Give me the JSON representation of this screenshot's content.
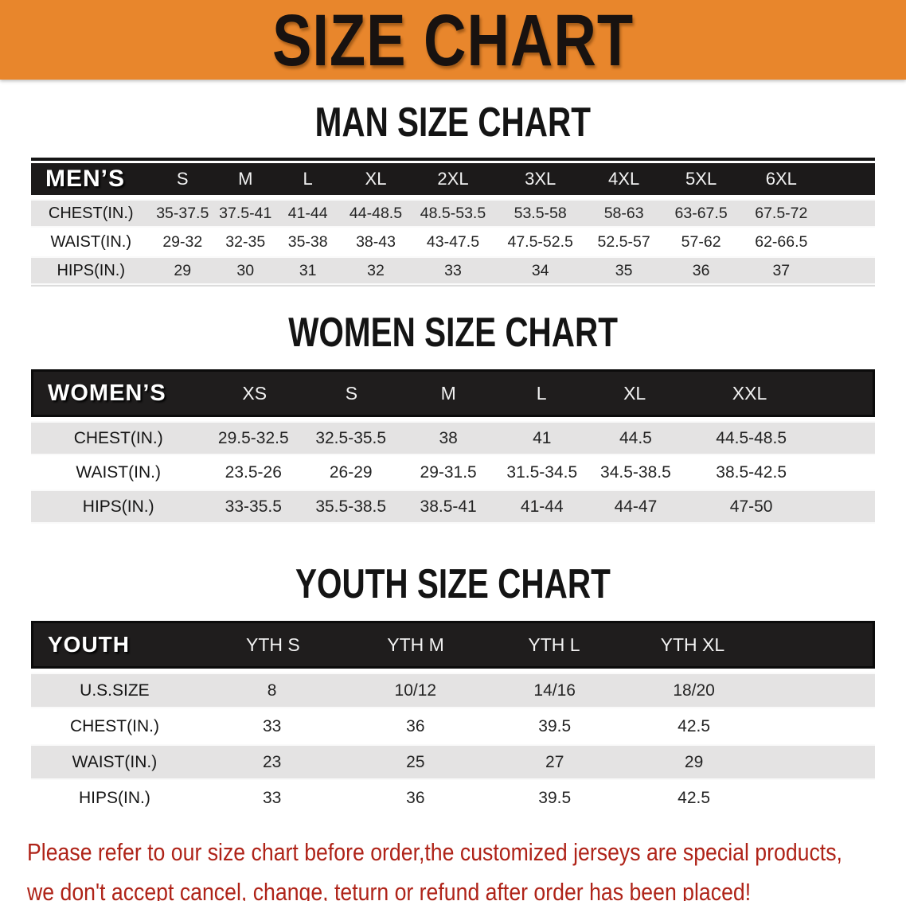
{
  "banner": {
    "title": "SIZE CHART",
    "bg_color": "#E8862C",
    "text_color": "#181210"
  },
  "colors": {
    "table_header_bg": "#1C1A1A",
    "shaded_row_bg": "#E4E3E3",
    "note_text": "#AF2318"
  },
  "sections": [
    {
      "heading": "MAN SIZE CHART",
      "table": {
        "label": "MEN’S",
        "columns": [
          "S",
          "M",
          "L",
          "XL",
          "2XL",
          "3XL",
          "4XL",
          "5XL",
          "6XL"
        ],
        "rows": [
          {
            "label": "CHEST(IN.)",
            "values": [
              "35-37.5",
              "37.5-41",
              "41-44",
              "44-48.5",
              "48.5-53.5",
              "53.5-58",
              "58-63",
              "63-67.5",
              "67.5-72"
            ]
          },
          {
            "label": "WAIST(IN.)",
            "values": [
              "29-32",
              "32-35",
              "35-38",
              "38-43",
              "43-47.5",
              "47.5-52.5",
              "52.5-57",
              "57-62",
              "62-66.5"
            ]
          },
          {
            "label": "HIPS(IN.)",
            "values": [
              "29",
              "30",
              "31",
              "32",
              "33",
              "34",
              "35",
              "36",
              "37"
            ]
          }
        ]
      }
    },
    {
      "heading": "WOMEN SIZE CHART",
      "table": {
        "label": "WOMEN’S",
        "columns": [
          "XS",
          "S",
          "M",
          "L",
          "XL",
          "XXL"
        ],
        "rows": [
          {
            "label": "CHEST(IN.)",
            "values": [
              "29.5-32.5",
              "32.5-35.5",
              "38",
              "41",
              "44.5",
              "44.5-48.5"
            ]
          },
          {
            "label": "WAIST(IN.)",
            "values": [
              "23.5-26",
              "26-29",
              "29-31.5",
              "31.5-34.5",
              "34.5-38.5",
              "38.5-42.5"
            ]
          },
          {
            "label": "HIPS(IN.)",
            "values": [
              "33-35.5",
              "35.5-38.5",
              "38.5-41",
              "41-44",
              "44-47",
              "47-50"
            ]
          }
        ]
      }
    },
    {
      "heading": "YOUTH SIZE CHART",
      "table": {
        "label": "YOUTH",
        "columns": [
          "YTH S",
          "YTH M",
          "YTH L",
          "YTH XL"
        ],
        "rows": [
          {
            "label": "U.S.SIZE",
            "values": [
              "8",
              "10/12",
              "14/16",
              "18/20"
            ]
          },
          {
            "label": "CHEST(IN.)",
            "values": [
              "33",
              "36",
              "39.5",
              "42.5"
            ]
          },
          {
            "label": "WAIST(IN.)",
            "values": [
              "23",
              "25",
              "27",
              "29"
            ]
          },
          {
            "label": "HIPS(IN.)",
            "values": [
              "33",
              "36",
              "39.5",
              "42.5"
            ]
          }
        ]
      }
    }
  ],
  "footer_note": {
    "line1": "Please refer to our size chart before order,the customized jerseys are special products,",
    "line2": "we don't accept cancel, change, teturn or refund after order has been placed!"
  }
}
